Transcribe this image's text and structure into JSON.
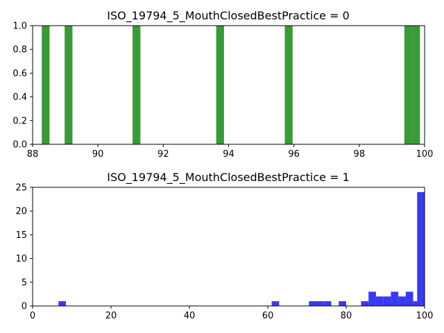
{
  "chart_data": [
    {
      "type": "bar",
      "title": "ISO_19794_5_MouthClosedBestPractice = 0",
      "xlabel": "",
      "ylabel": "",
      "xlim": [
        88,
        100
      ],
      "ylim": [
        0,
        1
      ],
      "xticks": [
        "88",
        "90",
        "92",
        "94",
        "96",
        "98",
        "100"
      ],
      "yticks": [
        "0.0",
        "0.2",
        "0.4",
        "0.6",
        "0.8",
        "1.0"
      ],
      "color": "#3a9a3a",
      "bin_width": 0.24,
      "bins": [
        {
          "x": 88.28,
          "value": 1
        },
        {
          "x": 88.98,
          "value": 1
        },
        {
          "x": 91.06,
          "value": 1
        },
        {
          "x": 93.62,
          "value": 1
        },
        {
          "x": 95.72,
          "value": 1
        },
        {
          "x": 99.38,
          "value": 1
        },
        {
          "x": 99.62,
          "value": 1
        }
      ]
    },
    {
      "type": "bar",
      "title": "ISO_19794_5_MouthClosedBestPractice = 1",
      "xlabel": "",
      "ylabel": "",
      "xlim": [
        0,
        100
      ],
      "ylim": [
        0,
        25
      ],
      "xticks": [
        "0",
        "20",
        "40",
        "60",
        "80",
        "100"
      ],
      "yticks": [
        "0",
        "5",
        "10",
        "15",
        "20",
        "25"
      ],
      "color": "#3a3af0",
      "bin_width": 1.9,
      "bins": [
        {
          "x": 6.6,
          "value": 1
        },
        {
          "x": 61.0,
          "value": 1
        },
        {
          "x": 70.5,
          "value": 1
        },
        {
          "x": 72.4,
          "value": 1
        },
        {
          "x": 74.3,
          "value": 1
        },
        {
          "x": 78.1,
          "value": 1
        },
        {
          "x": 83.8,
          "value": 1
        },
        {
          "x": 85.7,
          "value": 3
        },
        {
          "x": 87.6,
          "value": 2
        },
        {
          "x": 89.5,
          "value": 2
        },
        {
          "x": 91.4,
          "value": 3
        },
        {
          "x": 93.3,
          "value": 2
        },
        {
          "x": 95.2,
          "value": 3
        },
        {
          "x": 97.1,
          "value": 1
        },
        {
          "x": 98.1,
          "value": 24
        }
      ]
    }
  ]
}
